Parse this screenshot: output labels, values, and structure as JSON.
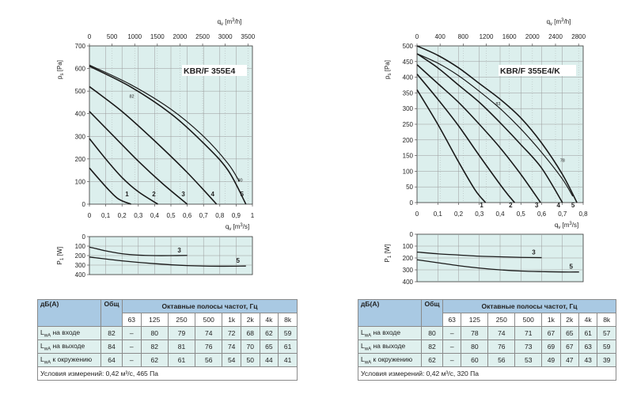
{
  "colors": {
    "plot_bg": "#dcefed",
    "grid": "#9a9a9a",
    "curve": "#1a1a1a",
    "header_bg": "#a9c9e3",
    "row_bg": "#dff0ee"
  },
  "charts": [
    {
      "model": "KBR/F 355E4",
      "top_axis_label": "q",
      "top_axis_sub": "v",
      "top_axis_unit": "[m",
      "top_axis_unit_sup": "3",
      "top_axis_unit_tail": "/h]",
      "y_label": "p",
      "y_sub": "s",
      "y_unit": "[Pa]",
      "x_label": "q",
      "x_sub": "v",
      "x_unit": "[m",
      "x_unit_sup": "3",
      "x_unit_tail": "/s]",
      "power_label": "P",
      "power_sub": "1",
      "power_unit": "[W]",
      "chart_data": {
        "type": "line",
        "x_ticks": [
          "0",
          "0,1",
          "0,2",
          "0,3",
          "0,4",
          "0,5",
          "0,6",
          "0,7",
          "0,8",
          "0,9",
          "1"
        ],
        "top_ticks": [
          "0",
          "500",
          "1000",
          "1500",
          "2000",
          "2500",
          "3000",
          "3500"
        ],
        "y_ticks": [
          "0",
          "100",
          "200",
          "300",
          "400",
          "500",
          "600",
          "700"
        ],
        "xlim": [
          0,
          1.0
        ],
        "ylim": [
          0,
          700
        ],
        "speed_curves": [
          {
            "label": "1",
            "x": [
              0,
              0.06,
              0.12,
              0.18,
              0.255
            ],
            "y": [
              160,
              110,
              62,
              22,
              0
            ]
          },
          {
            "label": "2",
            "x": [
              0,
              0.1,
              0.2,
              0.3,
              0.42
            ],
            "y": [
              290,
              200,
              118,
              55,
              0
            ]
          },
          {
            "label": "3",
            "x": [
              0,
              0.15,
              0.3,
              0.45,
              0.6
            ],
            "y": [
              410,
              300,
              190,
              90,
              0
            ]
          },
          {
            "label": "4",
            "x": [
              0,
              0.2,
              0.4,
              0.6,
              0.78
            ],
            "y": [
              520,
              410,
              280,
              140,
              0
            ]
          },
          {
            "label": "5",
            "x": [
              0,
              0.25,
              0.5,
              0.7,
              0.85,
              0.96
            ],
            "y": [
              610,
              520,
              400,
              270,
              150,
              0
            ]
          }
        ],
        "efficiency_curve": {
          "label": "82",
          "x": [
            0,
            0.25,
            0.5,
            0.7,
            0.85,
            0.92
          ],
          "y": [
            615,
            530,
            420,
            300,
            180,
            100
          ]
        },
        "eff_labels": [
          {
            "text": "82",
            "x": 0.26,
            "y": 470
          },
          {
            "text": "80",
            "x": 0.925,
            "y": 100
          }
        ],
        "power_ticks": [
          "0",
          "100",
          "200",
          "300",
          "400"
        ],
        "power_ylim": [
          0,
          400
        ],
        "power_curves": [
          {
            "label": "3",
            "x": [
              0,
              0.1,
              0.2,
              0.3,
              0.4,
              0.5,
              0.6
            ],
            "y": [
              110,
              150,
              180,
              195,
              200,
              200,
              198
            ]
          },
          {
            "label": "5",
            "x": [
              0,
              0.2,
              0.4,
              0.6,
              0.8,
              0.96
            ],
            "y": [
              215,
              255,
              285,
              305,
              312,
              310
            ]
          }
        ]
      },
      "table": {
        "header": "дБ(А)",
        "total": "Общ",
        "bands": "Октавные полосы частот, Гц",
        "freqs": [
          "63",
          "125",
          "250",
          "500",
          "1k",
          "2k",
          "4k",
          "8k"
        ],
        "rows": [
          {
            "L": "L",
            "sub": "wA",
            "text": " на входе",
            "tot": "82",
            "vals": [
              "–",
              "80",
              "79",
              "74",
              "72",
              "68",
              "62",
              "59"
            ]
          },
          {
            "L": "L",
            "sub": "wA",
            "text": " на выходе",
            "tot": "84",
            "vals": [
              "–",
              "82",
              "81",
              "76",
              "74",
              "70",
              "65",
              "61"
            ]
          },
          {
            "L": "L",
            "sub": "wA",
            "text": " к окружению",
            "tot": "64",
            "vals": [
              "–",
              "62",
              "61",
              "56",
              "54",
              "50",
              "44",
              "41"
            ]
          }
        ],
        "condition": "Условия измерений: 0,42 м³/с, 465 Па"
      }
    },
    {
      "model": "KBR/F 355E4/K",
      "top_axis_label": "q",
      "top_axis_sub": "v",
      "top_axis_unit": "[m",
      "top_axis_unit_sup": "3",
      "top_axis_unit_tail": "/h]",
      "y_label": "p",
      "y_sub": "s",
      "y_unit": "[Pa]",
      "x_label": "q",
      "x_sub": "v",
      "x_unit": "[m",
      "x_unit_sup": "3",
      "x_unit_tail": "/s]",
      "power_label": "P",
      "power_sub": "1",
      "power_unit": "[W]",
      "chart_data": {
        "type": "line",
        "x_ticks": [
          "0",
          "0,1",
          "0,2",
          "0,3",
          "0,4",
          "0,5",
          "0,6",
          "0,7",
          "0,8"
        ],
        "top_ticks": [
          "0",
          "400",
          "800",
          "1200",
          "1600",
          "2000",
          "2400",
          "2800"
        ],
        "y_ticks": [
          "0",
          "50",
          "100",
          "150",
          "200",
          "250",
          "300",
          "350",
          "400",
          "450",
          "500"
        ],
        "xlim": [
          0,
          0.8
        ],
        "ylim": [
          0,
          500
        ],
        "speed_curves": [
          {
            "label": "1",
            "x": [
              0,
              0.1,
              0.2,
              0.28,
              0.33
            ],
            "y": [
              360,
              250,
              130,
              40,
              0
            ]
          },
          {
            "label": "2",
            "x": [
              0,
              0.1,
              0.2,
              0.3,
              0.42,
              0.47
            ],
            "y": [
              410,
              330,
              245,
              150,
              40,
              0
            ]
          },
          {
            "label": "3",
            "x": [
              0,
              0.1,
              0.2,
              0.3,
              0.4,
              0.5,
              0.595
            ],
            "y": [
              440,
              380,
              320,
              250,
              175,
              90,
              0
            ]
          },
          {
            "label": "4",
            "x": [
              0,
              0.1,
              0.2,
              0.3,
              0.4,
              0.5,
              0.6,
              0.7
            ],
            "y": [
              475,
              430,
              375,
              320,
              255,
              185,
              110,
              0
            ]
          },
          {
            "label": "5",
            "x": [
              0,
              0.1,
              0.2,
              0.3,
              0.4,
              0.5,
              0.6,
              0.7,
              0.77
            ],
            "y": [
              500,
              470,
              430,
              380,
              330,
              270,
              190,
              90,
              0
            ]
          }
        ],
        "efficiency_curve": {
          "label": "83",
          "x": [
            0,
            0.1,
            0.2,
            0.3,
            0.4,
            0.5,
            0.6,
            0.7,
            0.75
          ],
          "y": [
            475,
            445,
            405,
            355,
            300,
            235,
            160,
            75,
            20
          ]
        },
        "eff_labels": [
          {
            "text": "83",
            "x": 0.39,
            "y": 310
          },
          {
            "text": "78",
            "x": 0.7,
            "y": 130
          }
        ],
        "power_ticks": [
          "0",
          "100",
          "200",
          "300",
          "400"
        ],
        "power_ylim": [
          0,
          400
        ],
        "power_curves": [
          {
            "label": "3",
            "x": [
              0,
              0.1,
              0.2,
              0.3,
              0.4,
              0.5,
              0.6
            ],
            "y": [
              150,
              165,
              175,
              185,
              190,
              195,
              197
            ]
          },
          {
            "label": "5",
            "x": [
              0,
              0.1,
              0.2,
              0.3,
              0.4,
              0.5,
              0.6,
              0.7,
              0.78
            ],
            "y": [
              215,
              240,
              265,
              285,
              300,
              310,
              315,
              318,
              318
            ]
          }
        ]
      },
      "table": {
        "header": "дБ(А)",
        "total": "Общ",
        "bands": "Октавные полосы частот, Гц",
        "freqs": [
          "63",
          "125",
          "250",
          "500",
          "1k",
          "2k",
          "4k",
          "8k"
        ],
        "rows": [
          {
            "L": "L",
            "sub": "wA",
            "text": " на входе",
            "tot": "80",
            "vals": [
              "–",
              "78",
              "74",
              "71",
              "67",
              "65",
              "61",
              "57"
            ]
          },
          {
            "L": "L",
            "sub": "wA",
            "text": " на выходе",
            "tot": "82",
            "vals": [
              "–",
              "80",
              "76",
              "73",
              "69",
              "67",
              "63",
              "59"
            ]
          },
          {
            "L": "L",
            "sub": "wA",
            "text": " к окружению",
            "tot": "62",
            "vals": [
              "–",
              "60",
              "56",
              "53",
              "49",
              "47",
              "43",
              "39"
            ]
          }
        ],
        "condition": "Условия измерений: 0,42 м³/с, 320 Па"
      }
    }
  ]
}
